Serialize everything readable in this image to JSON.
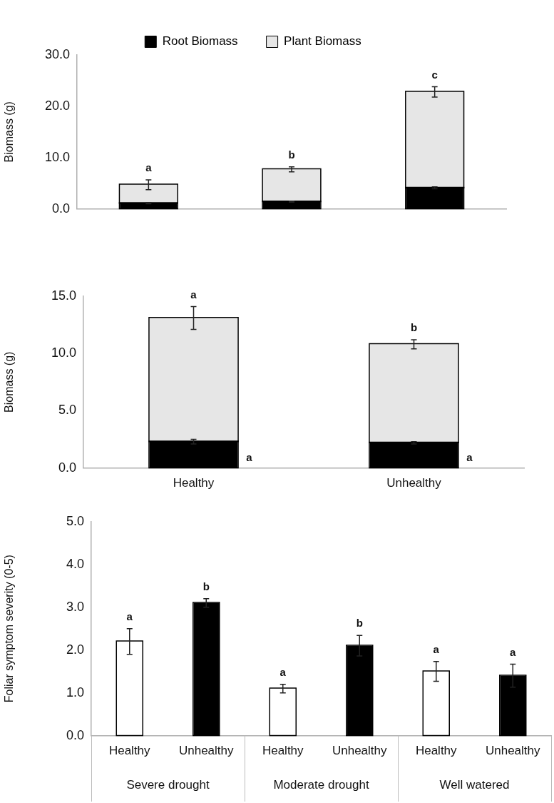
{
  "chart_data": [
    {
      "type": "bar",
      "stacked": true,
      "legend": "top",
      "ylabel": "Biomass (g)",
      "categories": [
        null,
        null,
        null
      ],
      "series": [
        {
          "name": "Root Biomass",
          "color": "#000000",
          "values": [
            1.1,
            1.4,
            4.1
          ],
          "errors": [
            0.1,
            0.1,
            0.2
          ]
        },
        {
          "name": "Plant Biomass",
          "color": "#e6e6e6",
          "values": [
            3.6,
            6.3,
            18.7
          ],
          "errors": [
            0.95,
            0.5,
            1.0
          ]
        }
      ],
      "ylim": [
        0,
        30
      ],
      "yticks": [
        {
          "value": 0,
          "label": "0.0"
        },
        {
          "value": 10,
          "label": "10.0"
        },
        {
          "value": 20,
          "label": "20.0"
        },
        {
          "value": 30,
          "label": "30.0"
        }
      ],
      "annotations": [
        "a",
        "b",
        "c"
      ]
    },
    {
      "type": "bar",
      "stacked": true,
      "ylabel": "Biomass (g)",
      "categories": [
        "Healthy",
        "Unhealthy"
      ],
      "series": [
        {
          "color": "#000000",
          "values": [
            2.3,
            2.2
          ],
          "errors": [
            0.2,
            0.1
          ]
        },
        {
          "color": "#e6e6e6",
          "values": [
            10.8,
            8.6
          ],
          "errors": [
            1.0,
            0.4
          ]
        }
      ],
      "ylim": [
        0,
        15
      ],
      "yticks": [
        {
          "value": 0,
          "label": "0.0"
        },
        {
          "value": 5,
          "label": "5.0"
        },
        {
          "value": 10,
          "label": "10.0"
        },
        {
          "value": 15,
          "label": "15.0"
        }
      ],
      "annotations": [
        "a",
        "b",
        "a",
        "a"
      ]
    },
    {
      "type": "bar",
      "ylabel": "Foliar symptom severity (0-5)",
      "categories": [
        "Healthy",
        "Unhealthy",
        "Healthy",
        "Unhealthy",
        "Healthy",
        "Unhealthy"
      ],
      "values": [
        2.2,
        3.1,
        1.1,
        2.1,
        1.5,
        1.4
      ],
      "colors": [
        "#ffffff",
        "#000000",
        "#ffffff",
        "#000000",
        "#ffffff",
        "#000000"
      ],
      "errors": [
        0.3,
        0.1,
        0.1,
        0.24,
        0.23,
        0.27
      ],
      "ylim": [
        0,
        5
      ],
      "yticks": [
        {
          "value": 0,
          "label": "0.0"
        },
        {
          "value": 1,
          "label": "1.0"
        },
        {
          "value": 2,
          "label": "2.0"
        },
        {
          "value": 3,
          "label": "3.0"
        },
        {
          "value": 4,
          "label": "4.0"
        },
        {
          "value": 5,
          "label": "5.0"
        }
      ],
      "annotations": [
        "a",
        "b",
        "a",
        "b",
        "a",
        "a",
        "Severe drought",
        "Moderate drought",
        "Well watered"
      ]
    }
  ]
}
